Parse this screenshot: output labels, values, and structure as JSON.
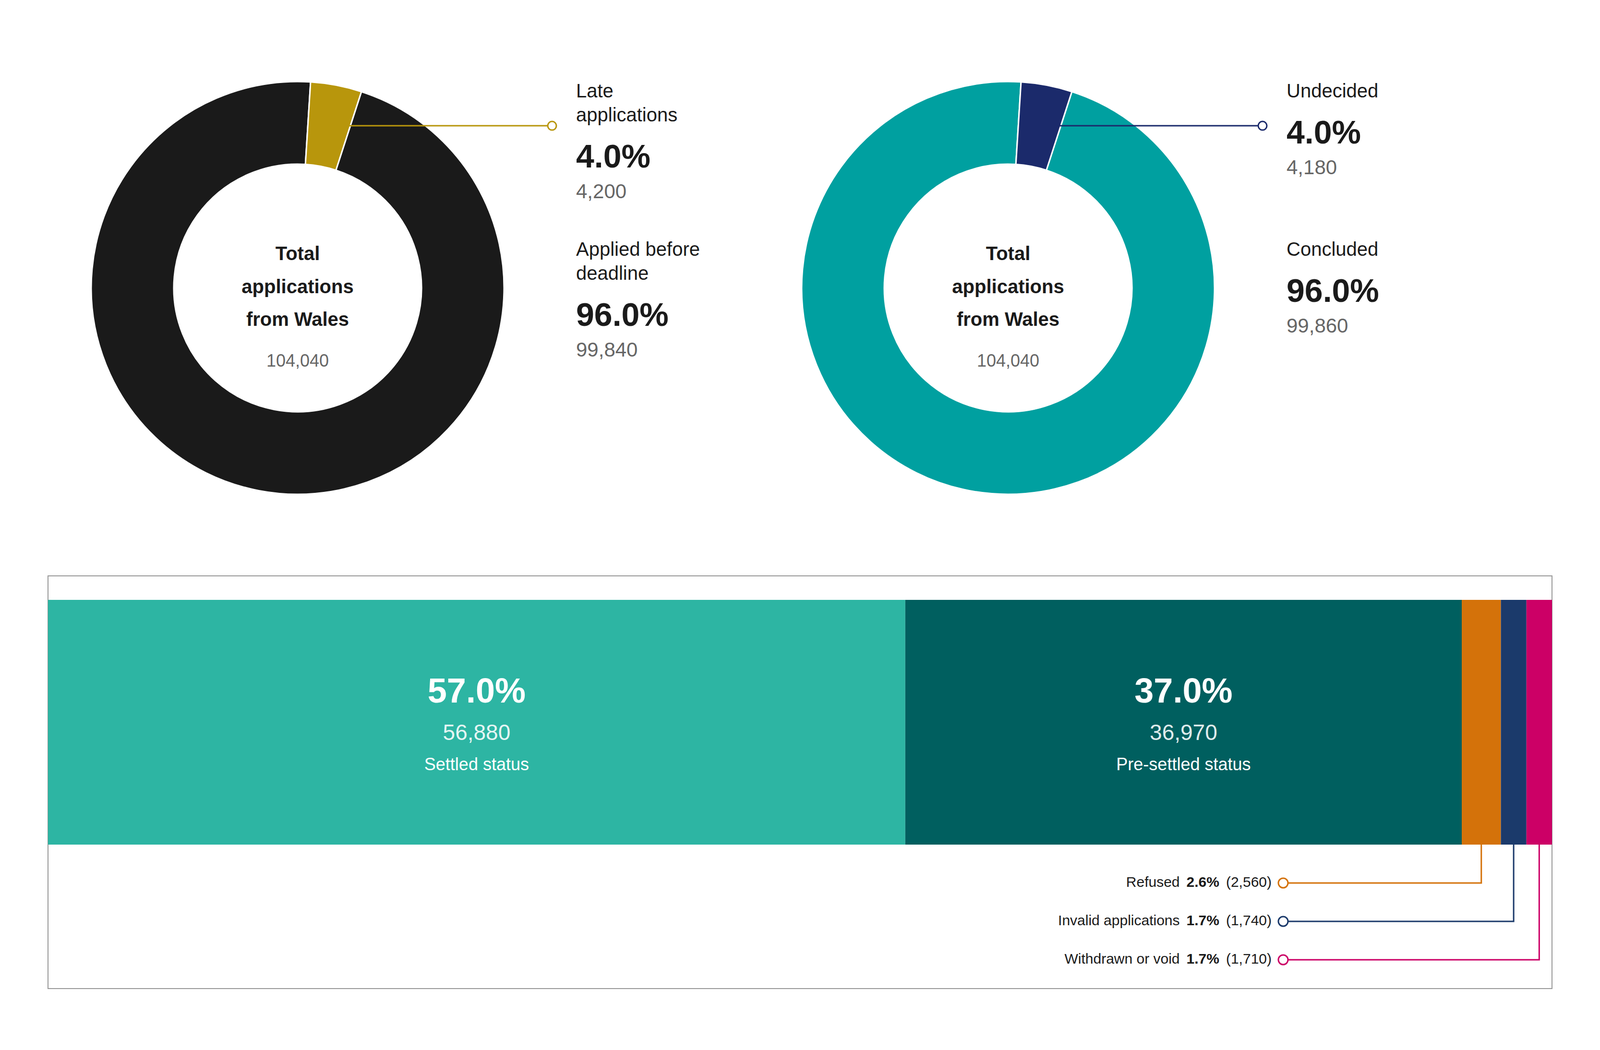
{
  "chart_data": [
    {
      "type": "pie",
      "categories": [
        "Applied before deadline",
        "Late applications"
      ],
      "values": [
        96.0,
        4.0
      ],
      "value_labels": [
        "96.0%",
        "4.0%"
      ],
      "counts": [
        99840,
        4200
      ],
      "count_labels": [
        "99,840",
        "4,200"
      ],
      "colors": [
        "#1a1a1a",
        "#b8960c"
      ],
      "annotations": [
        "Total",
        "applications",
        "from Wales"
      ],
      "total": 104040,
      "total_label": "104,040",
      "data_labels": true
    },
    {
      "type": "pie",
      "categories": [
        "Concluded",
        "Undecided"
      ],
      "values": [
        96.0,
        4.0
      ],
      "value_labels": [
        "96.0%",
        "4.0%"
      ],
      "counts": [
        99860,
        4180
      ],
      "count_labels": [
        "99,860",
        "4,180"
      ],
      "colors": [
        "#00a0a0",
        "#1b2a6b"
      ],
      "annotations": [
        "Total",
        "applications",
        "from Wales"
      ],
      "total": 104040,
      "total_label": "104,040",
      "data_labels": true
    },
    {
      "type": "bar",
      "orientation": "horizontal",
      "stacked": true,
      "categories": [
        null
      ],
      "series": [
        {
          "name": "Settled status",
          "color": "#2db5a3",
          "values": [
            57.0
          ],
          "value_labels": [
            "57.0%"
          ],
          "counts": [
            56880
          ],
          "count_labels": [
            "56,880"
          ]
        },
        {
          "name": "Pre-settled status",
          "color": "#005f5f",
          "values": [
            37.0
          ],
          "value_labels": [
            "37.0%"
          ],
          "counts": [
            36970
          ],
          "count_labels": [
            "36,970"
          ]
        },
        {
          "name": "Refused",
          "color": "#d4720a",
          "values": [
            2.6
          ],
          "value_labels": [
            "2.6%"
          ],
          "counts": [
            2560
          ],
          "count_labels": [
            "(2,560)"
          ]
        },
        {
          "name": "Invalid applications",
          "color": "#1b3a6b",
          "values": [
            1.7
          ],
          "value_labels": [
            "1.7%"
          ],
          "counts": [
            1740
          ],
          "count_labels": [
            "(1,740)"
          ]
        },
        {
          "name": "Withdrawn or void",
          "color": "#cc0066",
          "values": [
            1.7
          ],
          "value_labels": [
            "1.7%"
          ],
          "counts": [
            1710
          ],
          "count_labels": [
            "(1,710)"
          ]
        }
      ],
      "xlim": [
        0,
        100
      ],
      "tick_labels": false,
      "data_labels": true
    }
  ]
}
